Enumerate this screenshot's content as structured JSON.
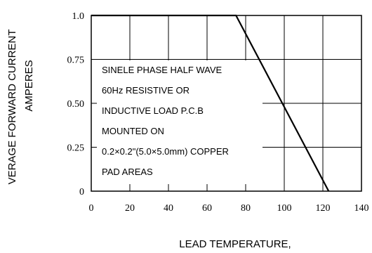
{
  "chart_data": {
    "type": "line",
    "ylabel_line1": "VERAGE FORWARD CURRENT",
    "ylabel_line2": "AMPERES",
    "xlabel": "LEAD TEMPERATURE,",
    "xlim": [
      0,
      140
    ],
    "ylim": [
      0,
      1.0
    ],
    "x_ticks": [
      0,
      20,
      40,
      60,
      80,
      100,
      120,
      140
    ],
    "x_tick_labels": [
      "0",
      "20",
      "40",
      "60",
      "80",
      "100",
      "120",
      "140"
    ],
    "y_ticks": [
      0,
      0.25,
      0.5,
      0.75,
      1.0
    ],
    "y_tick_labels": [
      "0",
      "0.25",
      "0.50",
      "0.75",
      "1.0"
    ],
    "grid": true,
    "series": [
      {
        "x": [
          0,
          75,
          123
        ],
        "y": [
          1.0,
          1.0,
          0.0
        ]
      }
    ],
    "annotation_lines": [
      "SINELE PHASE HALF WAVE",
      "60Hz RESISTIVE OR",
      "INDUCTIVE LOAD P.C.B",
      "MOUNTED ON",
      "0.2×0.2\"(5.0×5.0mm) COPPER",
      "PAD AREAS"
    ]
  }
}
